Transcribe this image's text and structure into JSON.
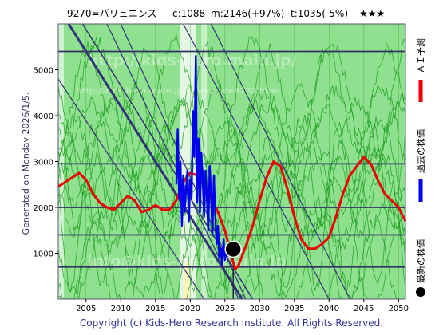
{
  "header": {
    "code_name": "9270=バリュエンス",
    "current": "c:1088",
    "mid": "m:2146(+97%)",
    "target": "t:1035(-5%)",
    "stars": "★★★"
  },
  "side_text": "Generated on Monday 2026/1/5.",
  "footer": "Copyright (c) Kids-Hero Research Institute. All Rights Reserved.",
  "watermarks": [
    "http://kids-hero.main.jp/",
    "http://kids-hero.main.jp/stock/code9270.html",
    "info@kids-hero.main.jp"
  ],
  "legend": {
    "ai_forecast": "ＡＩ予測",
    "past_price": "過去の株価",
    "latest_price": "最新の株価"
  },
  "colors": {
    "background": "#8fe08f",
    "green_lines": "#1e9e1e",
    "hline": "#333366",
    "diag": "#333377",
    "forecast": "#ee0000",
    "past": "#0000ee",
    "latest": "#000000",
    "pale_band": "#fff3b0",
    "white_band": "#ffffff"
  },
  "chart_data": {
    "type": "line",
    "title": "",
    "xlabel": "",
    "ylabel": "",
    "xlim": [
      2001,
      2051
    ],
    "ylim": [
      0,
      6000
    ],
    "x_ticks": [
      2005,
      2010,
      2015,
      2020,
      2025,
      2030,
      2035,
      2040,
      2045,
      2050
    ],
    "y_ticks": [
      1000,
      2000,
      3000,
      4000,
      5000
    ],
    "horizontal_levels": [
      700,
      1400,
      2000,
      2950,
      5400
    ],
    "series": [
      {
        "name": "ＡＩ予測",
        "color": "#ee0000",
        "x": [
          2001,
          2002,
          2003,
          2004,
          2005,
          2006,
          2007,
          2008,
          2009,
          2010,
          2011,
          2012,
          2013,
          2014,
          2015,
          2016,
          2017,
          2018,
          2019,
          2020,
          2021,
          2022,
          2023,
          2024,
          2025,
          2026,
          2026.5,
          2027,
          2028,
          2029,
          2030,
          2031,
          2032,
          2033,
          2034,
          2035,
          2036,
          2037,
          2038,
          2039,
          2040,
          2041,
          2042,
          2043,
          2044,
          2045,
          2046,
          2047,
          2048,
          2049,
          2050,
          2051
        ],
        "y": [
          2450,
          2550,
          2650,
          2750,
          2600,
          2300,
          2100,
          2000,
          1950,
          2100,
          2250,
          2150,
          1900,
          1950,
          2050,
          1950,
          1950,
          2150,
          2550,
          2750,
          2700,
          2500,
          2200,
          1900,
          1500,
          900,
          650,
          750,
          1150,
          1600,
          2150,
          2650,
          3000,
          2900,
          2400,
          1800,
          1300,
          1100,
          1100,
          1200,
          1350,
          1800,
          2300,
          2700,
          2900,
          3100,
          2950,
          2600,
          2300,
          2150,
          2000,
          1700
        ]
      },
      {
        "name": "過去の株価",
        "color": "#0000ee",
        "x": [
          2018.0,
          2018.2,
          2018.4,
          2018.6,
          2018.8,
          2019.0,
          2019.2,
          2019.4,
          2019.6,
          2019.8,
          2020.0,
          2020.2,
          2020.4,
          2020.6,
          2020.8,
          2021.0,
          2021.2,
          2021.4,
          2021.6,
          2021.8,
          2022.0,
          2022.2,
          2022.4,
          2022.6,
          2022.8,
          2023.0,
          2023.2,
          2023.4,
          2023.6,
          2023.8,
          2024.0,
          2024.2,
          2024.4,
          2024.6,
          2024.8,
          2025.0,
          2025.2,
          2025.4,
          2025.6,
          2025.8,
          2026.0
        ],
        "y": [
          2500,
          3700,
          2200,
          3000,
          1600,
          2700,
          1900,
          2400,
          2800,
          1700,
          2600,
          2200,
          4100,
          3100,
          5300,
          2100,
          3500,
          1900,
          3200,
          2600,
          1800,
          2800,
          2200,
          1500,
          2900,
          2300,
          1400,
          2700,
          1900,
          1200,
          1600,
          900,
          1100,
          750,
          1300,
          850,
          1100,
          950,
          1150,
          1050,
          1088
        ]
      }
    ],
    "latest": {
      "x": 2026.2,
      "y": 1088,
      "name": "最新の株価"
    }
  }
}
